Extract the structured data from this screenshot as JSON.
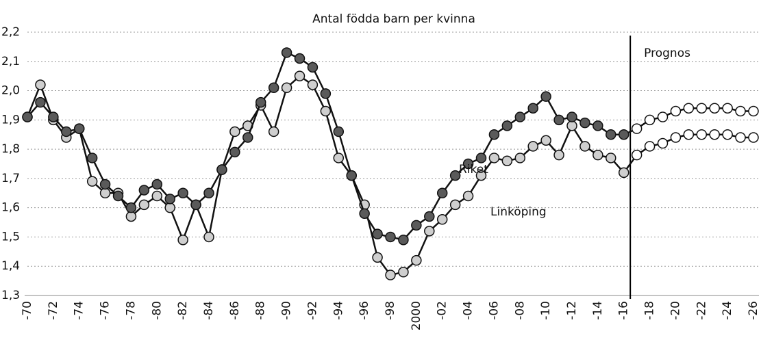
{
  "chart_data": {
    "type": "line",
    "title": "Antal födda barn per kvinna",
    "annotations": [
      "Prognos"
    ],
    "categories": [
      "-70",
      null,
      "-72",
      null,
      "-74",
      null,
      "-76",
      null,
      "-78",
      null,
      "-80",
      null,
      "-82",
      null,
      "-84",
      null,
      "-86",
      null,
      "-88",
      null,
      "-90",
      null,
      "-92",
      null,
      "-94",
      null,
      "-96",
      null,
      "-98",
      null,
      "2000",
      null,
      "-02",
      null,
      "-04",
      null,
      "-06",
      null,
      "-08",
      null,
      "-10",
      null,
      "-12",
      null,
      "-14",
      null,
      "-16",
      null,
      "-18",
      null,
      "-20",
      null,
      "-22",
      null,
      "-24",
      null,
      "-26"
    ],
    "series": [
      {
        "name": "Linköping",
        "color": "#cfcfcf",
        "values": [
          1.91,
          2.02,
          1.9,
          1.84,
          1.87,
          1.69,
          1.65,
          1.65,
          1.57,
          1.61,
          1.64,
          1.6,
          1.49,
          1.61,
          1.5,
          1.73,
          1.86,
          1.88,
          1.95,
          1.86,
          2.01,
          2.05,
          2.02,
          1.93,
          1.77,
          1.71,
          1.61,
          1.43,
          1.37,
          1.38,
          1.42,
          1.52,
          1.56,
          1.61,
          1.64,
          1.71,
          1.77,
          1.76,
          1.77,
          1.81,
          1.83,
          1.78,
          1.88,
          1.81,
          1.78,
          1.77,
          1.72,
          1.78,
          1.81,
          1.82,
          1.84,
          1.85,
          1.85,
          1.85,
          1.85,
          1.84,
          1.84
        ]
      },
      {
        "name": "Riket",
        "color": "#5a5a5a",
        "values": [
          1.91,
          1.96,
          1.91,
          1.86,
          1.87,
          1.77,
          1.68,
          1.64,
          1.6,
          1.66,
          1.68,
          1.63,
          1.65,
          1.61,
          1.65,
          1.73,
          1.79,
          1.84,
          1.96,
          2.01,
          2.13,
          2.11,
          2.08,
          1.99,
          1.86,
          1.71,
          1.58,
          1.51,
          1.5,
          1.49,
          1.54,
          1.57,
          1.65,
          1.71,
          1.75,
          1.77,
          1.85,
          1.88,
          1.91,
          1.94,
          1.98,
          1.9,
          1.91,
          1.89,
          1.88,
          1.85,
          1.85,
          1.87,
          1.9,
          1.91,
          1.93,
          1.94,
          1.94,
          1.94,
          1.94,
          1.93,
          1.93
        ]
      }
    ],
    "ylim": [
      1.3,
      2.2
    ],
    "yticks": [
      {
        "value": 1.3,
        "label": "1,3"
      },
      {
        "value": 1.4,
        "label": "1,4"
      },
      {
        "value": 1.5,
        "label": "1,5"
      },
      {
        "value": 1.6,
        "label": "1,6"
      },
      {
        "value": 1.7,
        "label": "1,7"
      },
      {
        "value": 1.8,
        "label": "1,8"
      },
      {
        "value": 1.9,
        "label": "1,9"
      },
      {
        "value": 2.0,
        "label": "2,0"
      },
      {
        "value": 2.1,
        "label": "2,1"
      },
      {
        "value": 2.2,
        "label": "2,2"
      }
    ],
    "grid": true
  }
}
